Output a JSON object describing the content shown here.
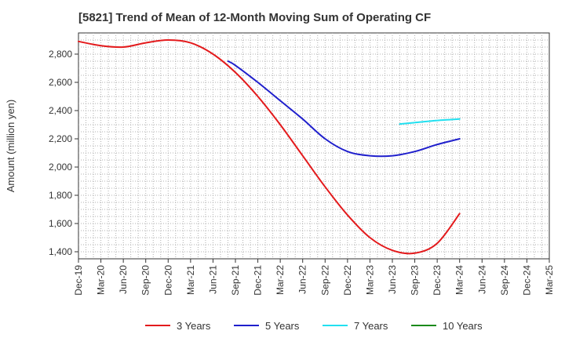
{
  "chart_data": {
    "type": "line",
    "title": "[5821]  Trend of Mean of 12-Month Moving Sum of Operating CF",
    "xlabel": "",
    "ylabel": "Amount (million yen)",
    "ylim": [
      1350,
      2950
    ],
    "yticks": [
      1400,
      1600,
      1800,
      2000,
      2200,
      2400,
      2600,
      2800
    ],
    "ytick_labels": [
      "1,400",
      "1,600",
      "1,800",
      "2,000",
      "2,200",
      "2,400",
      "2,600",
      "2,800"
    ],
    "x_categories": [
      "Dec-19",
      "Mar-20",
      "Jun-20",
      "Sep-20",
      "Dec-20",
      "Mar-21",
      "Jun-21",
      "Sep-21",
      "Dec-21",
      "Mar-22",
      "Jun-22",
      "Sep-22",
      "Dec-22",
      "Mar-23",
      "Jun-23",
      "Sep-23",
      "Dec-23",
      "Mar-24",
      "Jun-24",
      "Sep-24",
      "Dec-24",
      "Mar-25"
    ],
    "grid": true,
    "legend_position": "bottom",
    "series": [
      {
        "name": "3 Years",
        "color": "#e31a1c",
        "points": [
          [
            0,
            2890
          ],
          [
            1,
            2860
          ],
          [
            2,
            2850
          ],
          [
            3,
            2880
          ],
          [
            4,
            2900
          ],
          [
            5,
            2880
          ],
          [
            6,
            2800
          ],
          [
            7,
            2670
          ],
          [
            8,
            2500
          ],
          [
            9,
            2300
          ],
          [
            10,
            2080
          ],
          [
            11,
            1860
          ],
          [
            12,
            1660
          ],
          [
            13,
            1500
          ],
          [
            14,
            1410
          ],
          [
            15,
            1390
          ],
          [
            16,
            1460
          ],
          [
            17,
            1670
          ]
        ]
      },
      {
        "name": "5 Years",
        "color": "#1f1fcc",
        "points": [
          [
            6.67,
            2750
          ],
          [
            7,
            2720
          ],
          [
            8,
            2600
          ],
          [
            9,
            2470
          ],
          [
            10,
            2340
          ],
          [
            11,
            2200
          ],
          [
            12,
            2110
          ],
          [
            13,
            2080
          ],
          [
            14,
            2080
          ],
          [
            15,
            2110
          ],
          [
            16,
            2160
          ],
          [
            17,
            2200
          ]
        ]
      },
      {
        "name": "7 Years",
        "color": "#22e0f0",
        "points": [
          [
            14.33,
            2305
          ],
          [
            15,
            2315
          ],
          [
            16,
            2330
          ],
          [
            17,
            2340
          ]
        ]
      },
      {
        "name": "10 Years",
        "color": "#1a8a1a",
        "points": []
      }
    ]
  }
}
